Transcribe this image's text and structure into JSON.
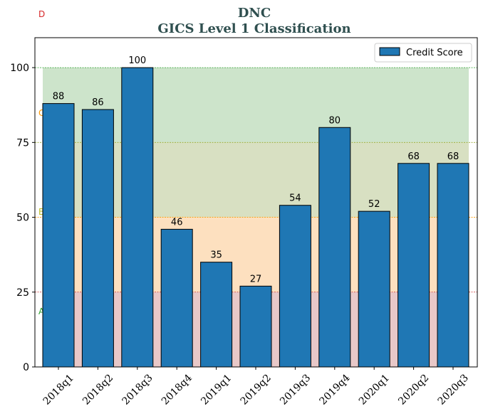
{
  "chart_data": {
    "type": "bar",
    "title": "DNC",
    "subtitle": "GICS Level 1 Classification",
    "categories": [
      "2018q1",
      "2018q2",
      "2018q3",
      "2018q4",
      "2019q1",
      "2019q2",
      "2019q3",
      "2019q4",
      "2020q1",
      "2020q2",
      "2020q3"
    ],
    "series": [
      {
        "name": "Credit Score",
        "values": [
          88,
          86,
          100,
          46,
          35,
          27,
          54,
          80,
          52,
          68,
          68
        ],
        "color": "#1f77b4"
      }
    ],
    "ylim": [
      0,
      110
    ],
    "yticks": [
      0,
      25,
      50,
      75,
      100
    ],
    "legend_position": "top-right",
    "zones": [
      {
        "label": "A",
        "from": 0,
        "to": 25,
        "fill": "#e8c8c8",
        "line": "#cc3333",
        "label_color": "#2ca02c"
      },
      {
        "label": "B",
        "from": 25,
        "to": 50,
        "fill": "#fde0bf",
        "line": "#ff9900",
        "label_color": "#bcbd22"
      },
      {
        "label": "C",
        "from": 50,
        "to": 75,
        "fill": "#d8e0c2",
        "line": "#9aaa30",
        "label_color": "#ff9900"
      },
      {
        "label": "D",
        "from": 75,
        "to": 100,
        "fill": "#cde4cb",
        "line": "#2ca02c",
        "label_color": "#d62728"
      }
    ]
  }
}
